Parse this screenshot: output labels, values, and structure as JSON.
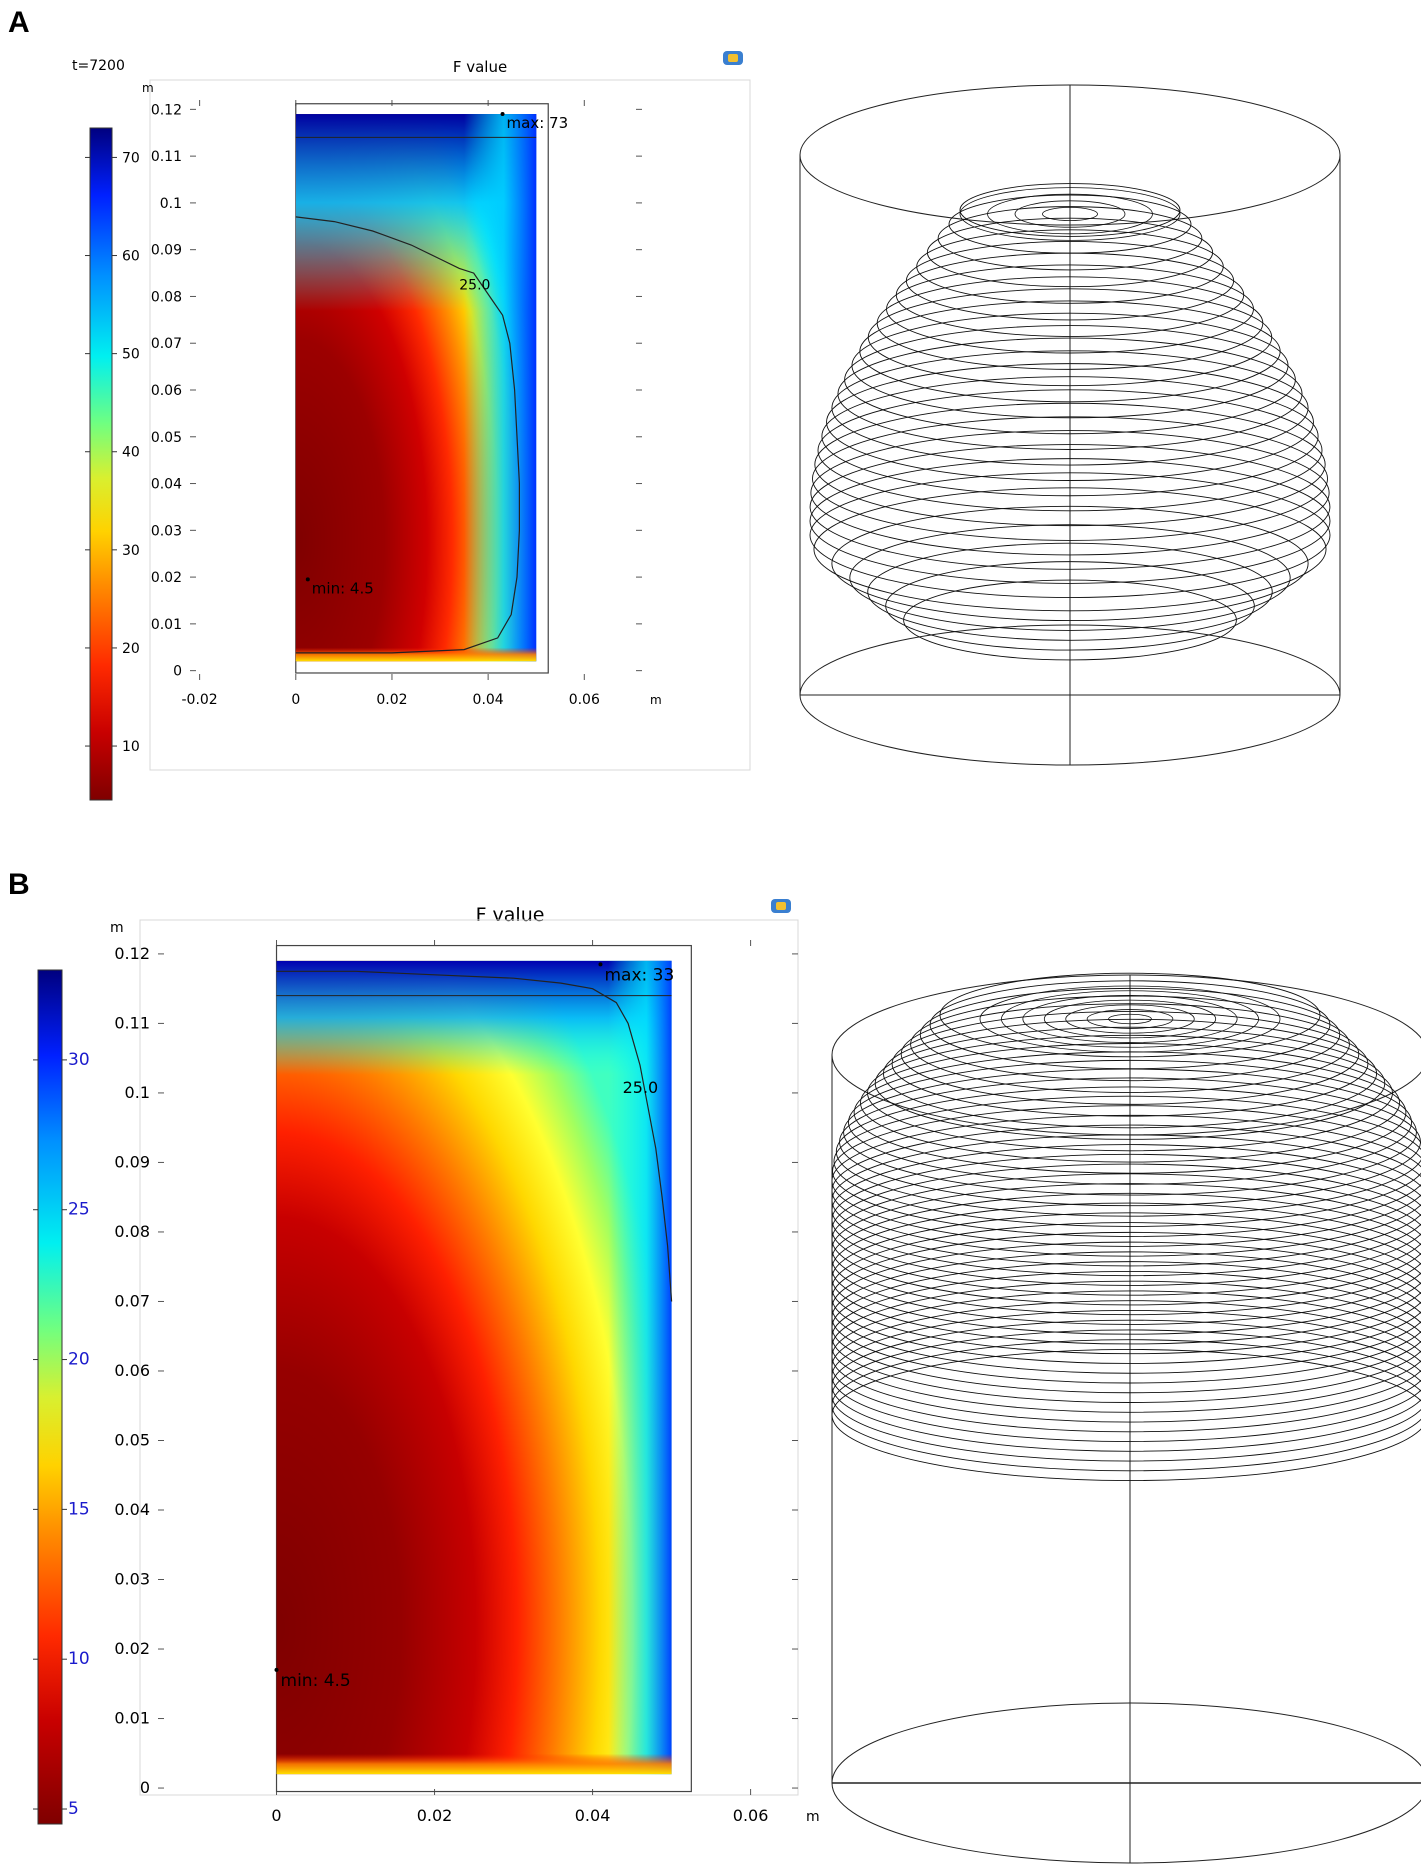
{
  "panel_a": {
    "label": "A",
    "time_label": "t=7200",
    "title": "F value",
    "colorbar": {
      "min": 4.5,
      "max": 73,
      "ticks": [
        "10",
        "20",
        "30",
        "40",
        "50",
        "60",
        "70"
      ],
      "tick_values": [
        10,
        20,
        30,
        40,
        50,
        60,
        70
      ],
      "tick_color": "#000000"
    },
    "y_axis": {
      "unit": "m",
      "ticks": [
        "0",
        "0.01",
        "0.02",
        "0.03",
        "0.04",
        "0.05",
        "0.06",
        "0.07",
        "0.08",
        "0.09",
        "0.1",
        "0.11",
        "0.12"
      ],
      "tick_values": [
        0,
        0.01,
        0.02,
        0.03,
        0.04,
        0.05,
        0.06,
        0.07,
        0.08,
        0.09,
        0.1,
        0.11,
        0.12
      ],
      "range": [
        -0.002,
        0.122
      ]
    },
    "x_axis": {
      "unit": "m",
      "ticks": [
        "-0.02",
        "0",
        "0.02",
        "0.04",
        "0.06"
      ],
      "tick_values": [
        -0.02,
        0,
        0.02,
        0.04,
        0.06
      ],
      "range": [
        -0.022,
        0.072
      ]
    },
    "max_label": "max: 73",
    "min_label": "min: 4.5",
    "contour_label": "25.0"
  },
  "panel_b": {
    "label": "B",
    "title": "F value",
    "colorbar": {
      "min": 4.5,
      "max": 33,
      "ticks": [
        "5",
        "10",
        "15",
        "20",
        "25",
        "30"
      ],
      "tick_values": [
        5,
        10,
        15,
        20,
        25,
        30
      ],
      "tick_color": "#1a1acc"
    },
    "y_axis": {
      "unit": "m",
      "ticks": [
        "0",
        "0.01",
        "0.02",
        "0.03",
        "0.04",
        "0.05",
        "0.06",
        "0.07",
        "0.08",
        "0.09",
        "0.1",
        "0.11",
        "0.12"
      ],
      "tick_values": [
        0,
        0.01,
        0.02,
        0.03,
        0.04,
        0.05,
        0.06,
        0.07,
        0.08,
        0.09,
        0.1,
        0.11,
        0.12
      ],
      "range": [
        -0.001,
        0.122
      ]
    },
    "x_axis": {
      "unit": "m",
      "ticks": [
        "0",
        "0.02",
        "0.04",
        "0.06"
      ],
      "tick_values": [
        0,
        0.02,
        0.04,
        0.06
      ],
      "range": [
        -0.015,
        0.066
      ]
    },
    "max_label": "max: 33",
    "min_label": "min: 4.5",
    "contour_label": "25.0"
  },
  "colors": {
    "jet": [
      "#7f0000",
      "#ff0000",
      "#ff7f00",
      "#ffff00",
      "#7fff7f",
      "#00ffff",
      "#007fff",
      "#0000ff",
      "#00007f"
    ]
  }
}
